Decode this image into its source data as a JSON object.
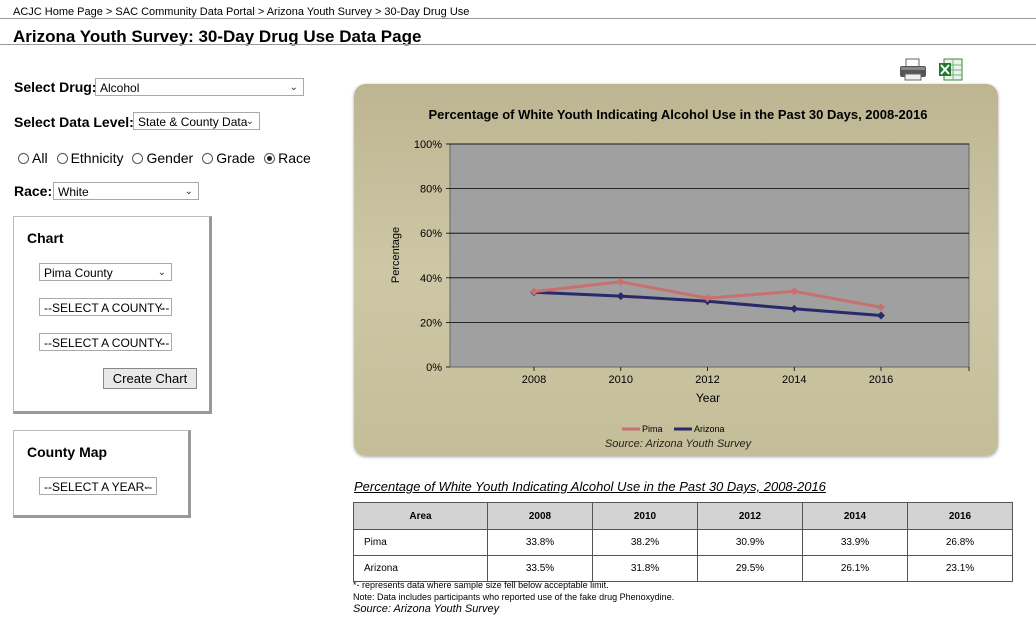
{
  "breadcrumb": "ACJC Home Page > SAC Community Data Portal > Arizona Youth Survey > 30-Day Drug Use",
  "page_title": "Arizona Youth Survey: 30-Day Drug Use Data Page",
  "filters": {
    "drug_label": "Select Drug:",
    "drug_value": "Alcohol",
    "level_label": "Select Data Level:",
    "level_value": "State & County Data",
    "radios": [
      {
        "label": "All",
        "checked": false
      },
      {
        "label": "Ethnicity",
        "checked": false
      },
      {
        "label": "Gender",
        "checked": false
      },
      {
        "label": "Grade",
        "checked": false
      },
      {
        "label": "Race",
        "checked": true
      }
    ],
    "race_label": "Race:",
    "race_value": "White"
  },
  "chart_box": {
    "title": "Chart",
    "county1": "Pima County",
    "county2": "--SELECT A COUNTY--",
    "county3": "--SELECT A COUNTY--",
    "button": "Create Chart"
  },
  "map_box": {
    "title": "County Map",
    "year": "--SELECT A YEAR--"
  },
  "icons": {
    "print": "printer-icon",
    "excel": "excel-icon"
  },
  "chart_data": {
    "type": "line",
    "title": "Percentage of White Youth Indicating Alcohol Use in the Past 30 Days, 2008-2016",
    "xlabel": "Year",
    "ylabel": "Percentage",
    "categories": [
      "2008",
      "2010",
      "2012",
      "2014",
      "2016"
    ],
    "yticks": [
      "0%",
      "20%",
      "40%",
      "60%",
      "80%",
      "100%"
    ],
    "ylim": [
      0,
      100
    ],
    "grid": true,
    "legend": "bottom",
    "series": [
      {
        "name": "Pima",
        "color": "#c87070",
        "values": [
          33.8,
          38.2,
          30.9,
          33.9,
          26.8
        ]
      },
      {
        "name": "Arizona",
        "color": "#2a2a6a",
        "values": [
          33.5,
          31.8,
          29.5,
          26.1,
          23.1
        ]
      }
    ],
    "source": "Source: Arizona Youth Survey"
  },
  "table": {
    "title": "Percentage of White Youth Indicating Alcohol Use in the Past 30 Days, 2008-2016",
    "headers": [
      "Area",
      "2008",
      "2010",
      "2012",
      "2014",
      "2016"
    ],
    "rows": [
      [
        "Pima",
        "33.8%",
        "38.2%",
        "30.9%",
        "33.9%",
        "26.8%"
      ],
      [
        "Arizona",
        "33.5%",
        "31.8%",
        "29.5%",
        "26.1%",
        "23.1%"
      ]
    ]
  },
  "notes": {
    "note1": "*- represents data where sample size fell below acceptable limit.",
    "note2": "Note: Data includes participants who reported use of the fake drug Phenoxydine.",
    "source": "Source: Arizona Youth Survey"
  }
}
